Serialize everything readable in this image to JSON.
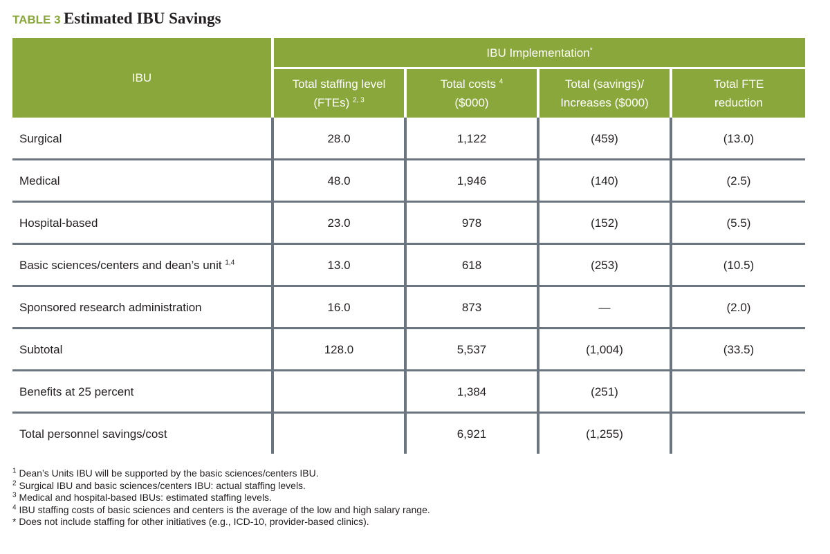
{
  "title": {
    "label": "TABLE 3",
    "text": "Estimated IBU Savings"
  },
  "table": {
    "header": {
      "row_header": "IBU",
      "group": {
        "text": "IBU Implementation",
        "sup": "*"
      },
      "columns": [
        {
          "lines": [
            {
              "text": "Total staffing level"
            },
            {
              "text": "(FTEs)",
              "sup": "2, 3"
            }
          ]
        },
        {
          "lines": [
            {
              "text": "Total costs",
              "sup": "4"
            },
            {
              "text": "($000)"
            }
          ]
        },
        {
          "lines": [
            {
              "text": "Total (savings)/"
            },
            {
              "text": "Increases ($000)"
            }
          ]
        },
        {
          "lines": [
            {
              "text": "Total FTE"
            },
            {
              "text": "reduction"
            }
          ]
        }
      ]
    },
    "rows": [
      {
        "label": "Surgical",
        "cells": [
          "28.0",
          "1,122",
          "(459)",
          "(13.0)"
        ]
      },
      {
        "label": "Medical",
        "cells": [
          "48.0",
          "1,946",
          "(140)",
          "(2.5)"
        ]
      },
      {
        "label": "Hospital-based",
        "cells": [
          "23.0",
          "978",
          "(152)",
          "(5.5)"
        ]
      },
      {
        "label": "Basic sciences/centers and dean’s unit",
        "sup": "1,4",
        "cells": [
          "13.0",
          "618",
          "(253)",
          "(10.5)"
        ]
      },
      {
        "label": "Sponsored research administration",
        "cells": [
          "16.0",
          "873",
          "—",
          "(2.0)"
        ]
      },
      {
        "label": "Subtotal",
        "cells": [
          "128.0",
          "5,537",
          "(1,004)",
          "(33.5)"
        ]
      },
      {
        "label": "Benefits at 25 percent",
        "cells": [
          null,
          "1,384",
          "(251)",
          null
        ]
      },
      {
        "label": "Total personnel savings/cost",
        "cells": [
          null,
          "6,921",
          "(1,255)",
          null
        ]
      }
    ]
  },
  "footnotes": [
    {
      "mark": "1",
      "text": "Dean’s Units IBU will be supported by the basic sciences/centers IBU."
    },
    {
      "mark": "2",
      "text": "Surgical IBU and basic sciences/centers IBU: actual staffing levels."
    },
    {
      "mark": "3",
      "text": "Medical and hospital-based IBUs: estimated staffing levels."
    },
    {
      "mark": "4",
      "text": "IBU staffing costs of basic sciences and centers is the average of the low and high salary range."
    },
    {
      "mark": "*",
      "text": "Does not include staffing for other initiatives (e.g., ICD-10, provider-based clinics)."
    }
  ]
}
